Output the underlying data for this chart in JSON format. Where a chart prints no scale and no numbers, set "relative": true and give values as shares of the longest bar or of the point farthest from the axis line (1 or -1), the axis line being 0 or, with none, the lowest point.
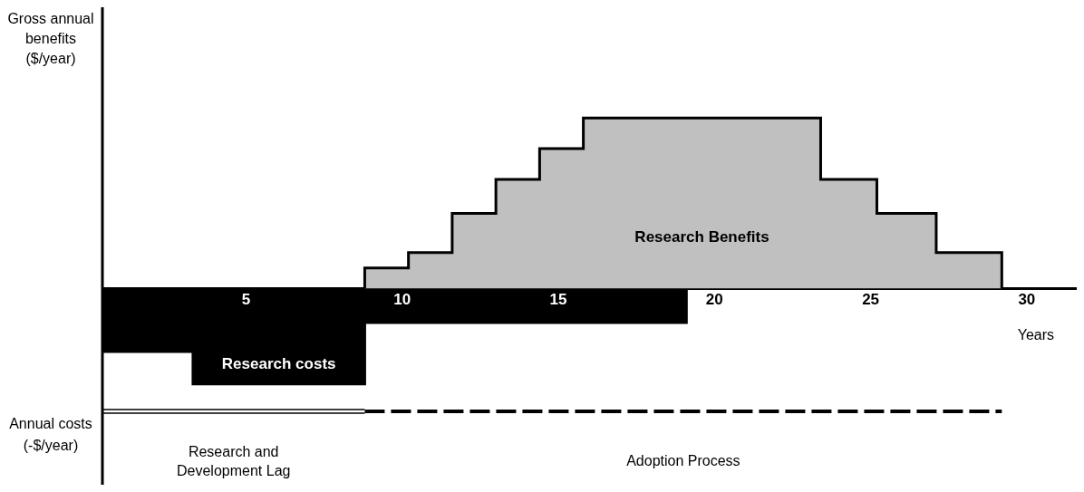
{
  "chart_data": {
    "type": "area",
    "relative": true,
    "xlabel": "Years",
    "ylabel": "Gross annual benefits ($/year)",
    "xlim": [
      0.4,
      31.6
    ],
    "xticks": [
      5,
      10,
      15,
      20,
      25,
      30
    ],
    "series": [
      {
        "name": "Research Benefits",
        "color": "#c0c0c0",
        "x": [
          8.8,
          8.8,
          10.2,
          10.2,
          11.6,
          11.6,
          13,
          13,
          14.4,
          14.4,
          15.8,
          15.8,
          23.4,
          23.4,
          25.2,
          25.2,
          27.1,
          27.1,
          29.2,
          29.2
        ],
        "values": [
          0,
          0.12,
          0.12,
          0.21,
          0.21,
          0.44,
          0.44,
          0.64,
          0.64,
          0.82,
          0.82,
          1,
          1,
          0.64,
          0.64,
          0.44,
          0.44,
          0.21,
          0.21,
          0
        ]
      },
      {
        "name": "Research costs",
        "color": "#000000",
        "x": [
          0.4,
          0.4,
          3.3,
          3.3,
          8.8,
          8.8,
          19.1,
          19.1
        ],
        "values": [
          0,
          -0.37,
          -0.37,
          -0.56,
          -0.56,
          -0.2,
          -0.2,
          0
        ]
      }
    ],
    "annotations": [
      "Annual costs (-$/year)",
      "Research and Development Lag",
      "Adoption Process"
    ]
  }
}
